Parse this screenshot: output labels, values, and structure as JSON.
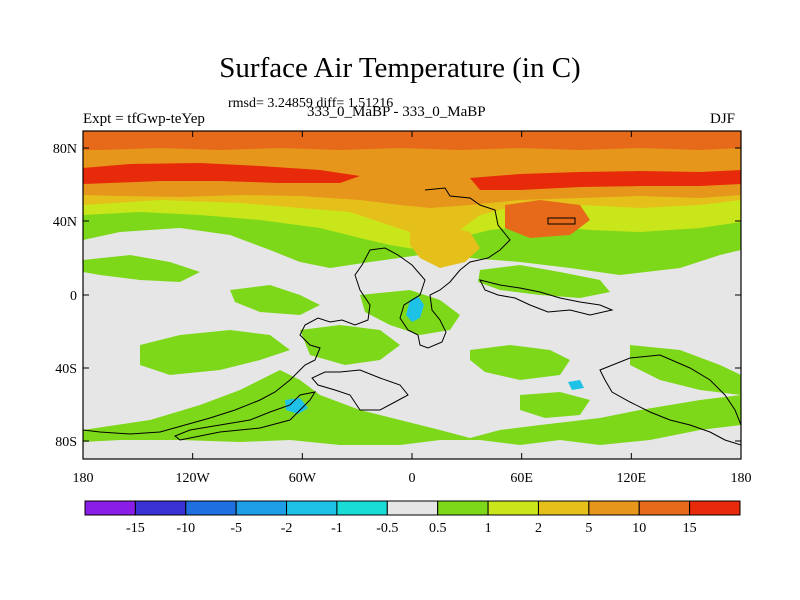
{
  "header": {
    "title": "Surface Air Temperature (in C)",
    "stats": "rmsd= 3.24859 diff= 1.51216",
    "expt": "Expt = tfGwp-teYep",
    "runs": "333_0_MaBP - 333_0_MaBP",
    "season": "DJF"
  },
  "map": {
    "x_ticks": [
      "180",
      "120W",
      "60W",
      "0",
      "60E",
      "120E",
      "180"
    ],
    "y_ticks": [
      "80N",
      "40N",
      "0",
      "40S",
      "80S"
    ]
  },
  "colorbar": {
    "labels": [
      "-15",
      "-10",
      "-5",
      "-2",
      "-1",
      "-0.5",
      "0.5",
      "1",
      "2",
      "5",
      "10",
      "15"
    ],
    "colors": [
      "#8a1de6",
      "#3a32d4",
      "#1f6fe0",
      "#1e9ee6",
      "#1ec2e6",
      "#19dcd6",
      "#e6e6e6",
      "#7ed81a",
      "#c9e61a",
      "#e6c01a",
      "#e6961a",
      "#e66a1a",
      "#e62a0a"
    ]
  },
  "palette": {
    "neutral": "#e6e6e6",
    "warm1": "#7ed81a",
    "warm2": "#c9e61a",
    "warm3": "#e6c01a",
    "warm4": "#e6961a",
    "warm5": "#e66a1a",
    "warm6": "#e62a0a",
    "cool1": "#19dcd6",
    "cool2": "#1ec2e6"
  }
}
